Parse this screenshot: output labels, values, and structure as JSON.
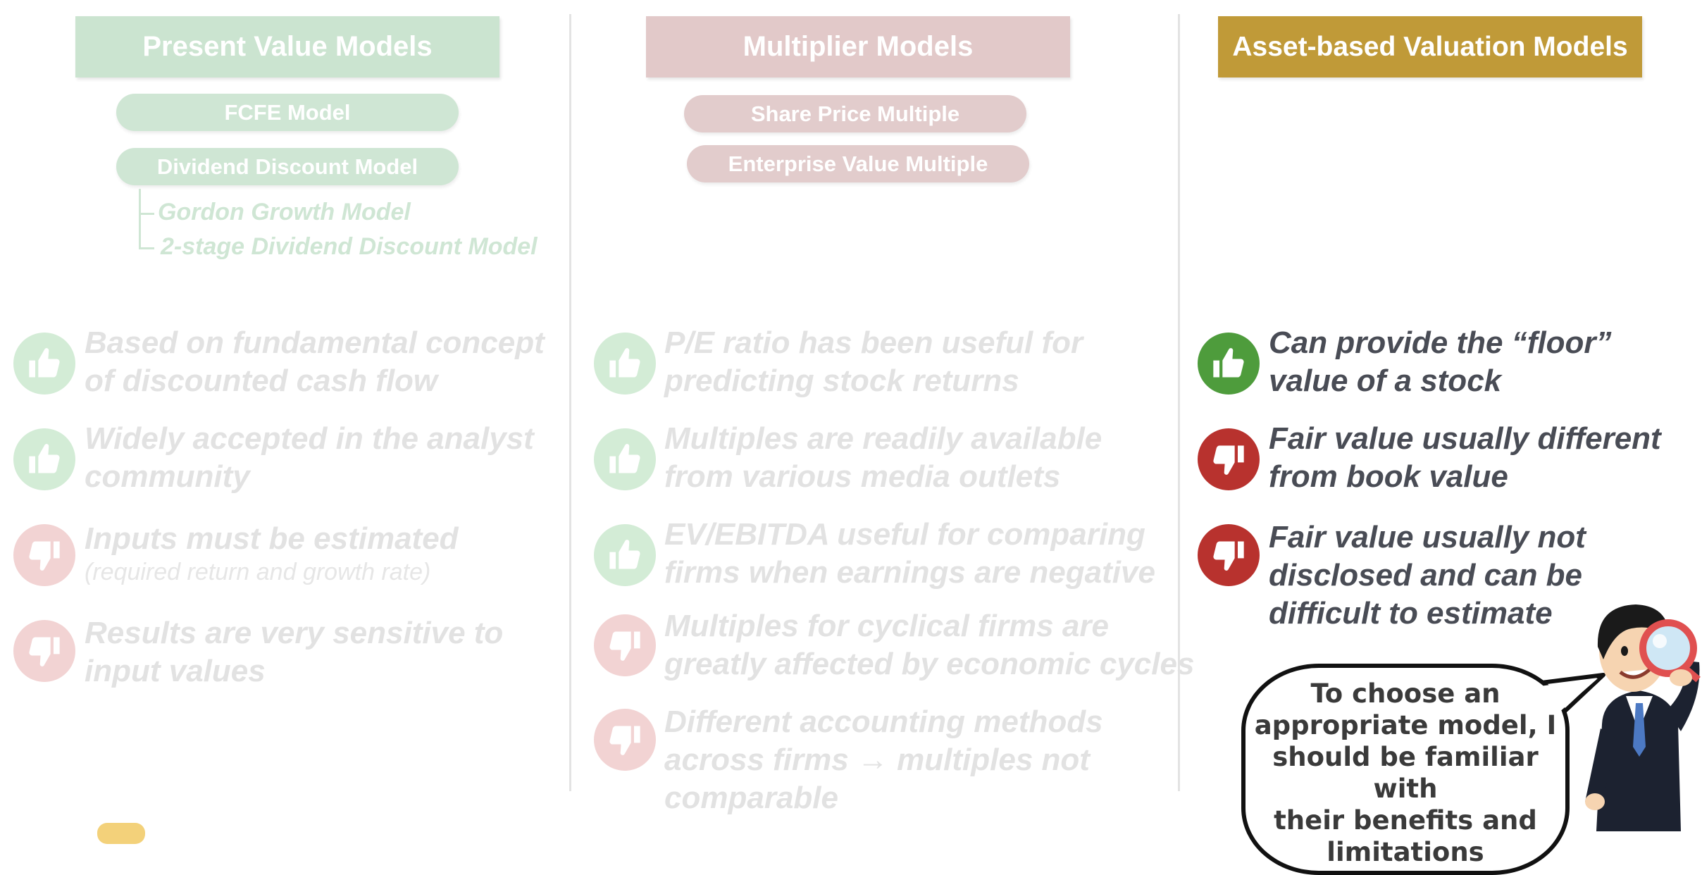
{
  "colors": {
    "pv_banner": "#cbe4d0",
    "pv_pill": "#cfe6d4",
    "mult_banner": "#e2c9c9",
    "mult_pill": "#e2cccc",
    "asset_banner": "#c09a38",
    "thumb_up_faded": "#d3ecd6",
    "thumb_down_faded": "#f2d3d3",
    "thumb_up_active": "#4e9c3c",
    "thumb_down_active": "#b8322e",
    "text_active": "#494c55",
    "text_faded": "#e2e2e2"
  },
  "columns": {
    "present_value": {
      "title": "Present Value Models",
      "models": [
        "FCFE Model",
        "Dividend Discount Model"
      ],
      "sub_models": [
        "Gordon Growth Model",
        "2-stage Dividend Discount Model"
      ],
      "points": [
        {
          "type": "pro",
          "lines": [
            "Based on fundamental concept",
            "of discounted cash flow"
          ]
        },
        {
          "type": "pro",
          "lines": [
            "Widely accepted in the analyst",
            "community"
          ]
        },
        {
          "type": "con",
          "lines": [
            "Inputs must be estimated"
          ],
          "note": "(required return and growth rate)"
        },
        {
          "type": "con",
          "lines": [
            "Results are very sensitive to",
            "input values"
          ]
        }
      ]
    },
    "multiplier": {
      "title": "Multiplier Models",
      "models": [
        "Share Price Multiple",
        "Enterprise Value Multiple"
      ],
      "points": [
        {
          "type": "pro",
          "lines": [
            "P/E ratio has been useful for",
            "predicting stock returns"
          ]
        },
        {
          "type": "pro",
          "lines": [
            "Multiples are readily available",
            "from various media outlets"
          ]
        },
        {
          "type": "pro",
          "lines": [
            "EV/EBITDA useful for comparing",
            "firms when earnings are negative"
          ]
        },
        {
          "type": "con",
          "lines": [
            "Multiples for cyclical firms are",
            "greatly affected by economic cycles"
          ]
        },
        {
          "type": "con",
          "lines": [
            "Different accounting methods",
            "across firms → multiples not",
            "comparable"
          ]
        }
      ]
    },
    "asset_based": {
      "title": "Asset-based Valuation Models",
      "points": [
        {
          "type": "pro",
          "lines": [
            "Can provide the “floor”",
            "value of a stock"
          ]
        },
        {
          "type": "con",
          "lines": [
            "Fair value usually different",
            "from book value"
          ]
        },
        {
          "type": "con",
          "lines": [
            "Fair value usually not",
            "disclosed and can be",
            "difficult to estimate"
          ]
        }
      ]
    }
  },
  "speech_bubble": {
    "lines": [
      "To choose an",
      "appropriate model, I",
      "should be familiar with",
      "their benefits and",
      "limitations"
    ]
  },
  "icons": {
    "thumb_up": "thumbs-up-icon",
    "thumb_down": "thumbs-down-icon",
    "character": "businessman-magnifier-icon"
  }
}
